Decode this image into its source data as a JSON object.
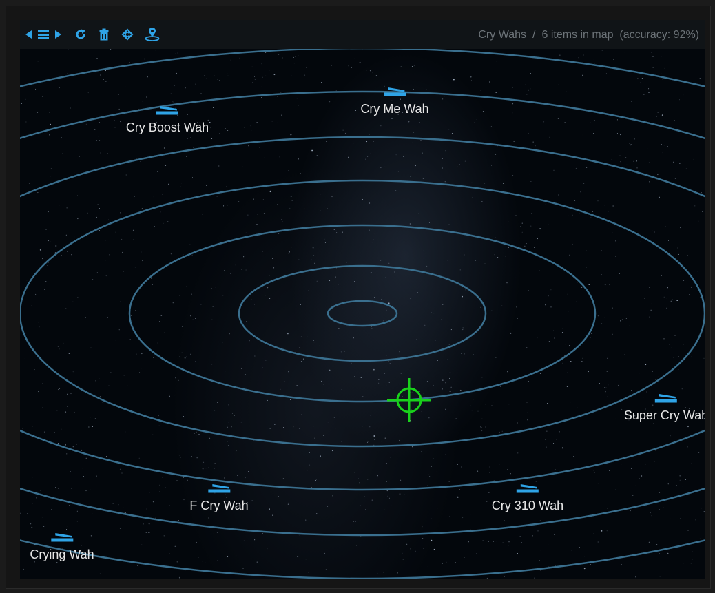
{
  "toolbar": {
    "icons": [
      "back-arrow-icon",
      "menu-list-icon",
      "forward-arrow-icon",
      "refresh-icon",
      "trash-icon",
      "center-target-icon",
      "location-pin-icon"
    ]
  },
  "status": {
    "category": "Cry Wahs",
    "separator": "/",
    "summary": "6 items in map  (accuracy: 92%)"
  },
  "colors": {
    "accent": "#2fa4e7",
    "ring": "#3a6f8e",
    "target": "#19d11b",
    "label": "#e6e6e6",
    "muted": "#6c7378"
  },
  "map": {
    "items": [
      {
        "name": "Cry Boost Wah",
        "icon": "wah-pedal-icon"
      },
      {
        "name": "Cry Me Wah",
        "icon": "wah-pedal-icon"
      },
      {
        "name": "Super Cry Wah",
        "icon": "wah-pedal-icon"
      },
      {
        "name": "F Cry Wah",
        "icon": "wah-pedal-icon"
      },
      {
        "name": "Cry 310 Wah",
        "icon": "wah-pedal-icon"
      },
      {
        "name": "Crying Wah",
        "icon": "wah-pedal-icon"
      }
    ]
  }
}
